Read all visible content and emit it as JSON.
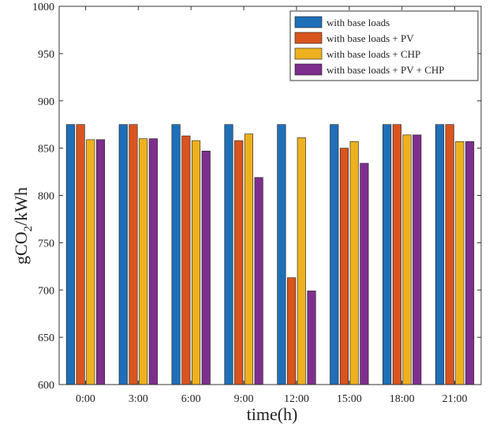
{
  "chart_data": {
    "type": "bar",
    "title": "",
    "xlabel": "time(h)",
    "ylabel_main": "gCO",
    "ylabel_sub": "2",
    "ylabel_rest": "/kWh",
    "ylim": [
      600,
      1000
    ],
    "yticks": [
      600,
      650,
      700,
      750,
      800,
      850,
      900,
      950,
      1000
    ],
    "grid": false,
    "legend_position": "top-right",
    "categories": [
      "0:00",
      "3:00",
      "6:00",
      "9:00",
      "12:00",
      "15:00",
      "18:00",
      "21:00"
    ],
    "series": [
      {
        "name": "with base loads",
        "color": "#1f6fb8",
        "values": [
          875,
          875,
          875,
          875,
          875,
          875,
          875,
          875
        ]
      },
      {
        "name": "with base loads + PV",
        "color": "#d9541e",
        "values": [
          875,
          875,
          863,
          858,
          713,
          850,
          875,
          875
        ]
      },
      {
        "name": "with base loads + CHP",
        "color": "#edb120",
        "values": [
          859,
          860,
          858,
          865,
          861,
          857,
          864,
          857
        ]
      },
      {
        "name": "with base loads + PV + CHP",
        "color": "#7e2f8e",
        "values": [
          859,
          860,
          847,
          819,
          699,
          834,
          864,
          857
        ]
      }
    ]
  }
}
